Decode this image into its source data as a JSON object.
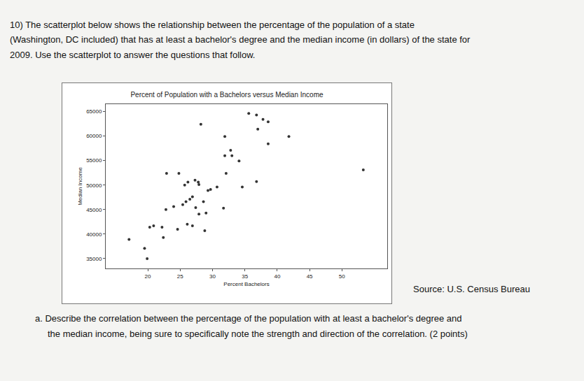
{
  "question": {
    "lines": [
      "10) The scatterplot below shows the relationship between the percentage of the population of a state",
      "(Washington, DC included) that has at least a bachelor's degree and the median income (in dollars) of the state for",
      "2009. Use the scatterplot to answer the questions that follow."
    ]
  },
  "chart_data": {
    "type": "scatter",
    "title": "Percent of Population with a Bachelors versus Median Income",
    "x_label": "Percent Bachelors",
    "y_label": "Median Income",
    "x": [
      19.9,
      19.5,
      17.1,
      20.3,
      20.9,
      22.4,
      22.2,
      24.6,
      26.1,
      26.9,
      28.8,
      22.8,
      24.0,
      25.4,
      25.9,
      26.5,
      26.9,
      27.4,
      27.9,
      29.0,
      28.6,
      31.7,
      22.9,
      24.8,
      25.7,
      26.2,
      27.3,
      27.9,
      27.8,
      29.3,
      29.7,
      30.7,
      32.1,
      34.6,
      36.8,
      32.8,
      34.1,
      31.9,
      33.0,
      31.9,
      28.2,
      37.0,
      38.6,
      41.8,
      35.6,
      36.8,
      37.8,
      38.6,
      53.3
    ],
    "values": [
      35000,
      37100,
      38900,
      41400,
      41700,
      39300,
      41400,
      41000,
      42000,
      41700,
      40700,
      45000,
      45600,
      46000,
      46600,
      47100,
      47600,
      45400,
      44100,
      44300,
      46600,
      45300,
      52400,
      52400,
      50000,
      50600,
      51000,
      50100,
      50600,
      48900,
      49100,
      49600,
      52400,
      49600,
      50700,
      57100,
      54900,
      56000,
      56000,
      59900,
      62400,
      61400,
      58400,
      59900,
      64600,
      64300,
      63400,
      62900,
      53100
    ],
    "color": "#333333",
    "xlim": [
      13.5,
      57
    ],
    "xticks": [
      20,
      25,
      30,
      35,
      40,
      45,
      50
    ],
    "ylim": [
      33000,
      66500
    ],
    "yticks": [
      35000,
      40000,
      45000,
      50000,
      55000,
      60000,
      65000
    ],
    "grid": false
  },
  "source": "Source: U.S. Census Bureau",
  "part_a": {
    "lines": [
      "a. Describe the correlation between the percentage of the population with at least a bachelor's degree and",
      "the median income, being sure to specifically note the strength and direction of the correlation. (2 points)"
    ]
  }
}
